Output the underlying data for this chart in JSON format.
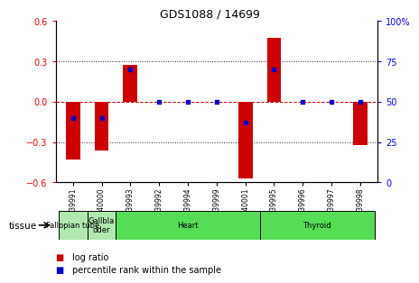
{
  "title": "GDS1088 / 14699",
  "samples": [
    "GSM39991",
    "GSM40000",
    "GSM39993",
    "GSM39992",
    "GSM39994",
    "GSM39999",
    "GSM40001",
    "GSM39995",
    "GSM39996",
    "GSM39997",
    "GSM39998"
  ],
  "log_ratios": [
    -0.43,
    -0.36,
    0.27,
    0.0,
    0.0,
    0.0,
    -0.57,
    0.47,
    0.0,
    0.0,
    -0.32
  ],
  "percentile_ranks": [
    40,
    40,
    70,
    50,
    50,
    50,
    37,
    70,
    50,
    50,
    50
  ],
  "tissue_boundaries": [
    {
      "label": "Fallopian tube",
      "start": 0,
      "end": 1,
      "color": "#b0e8b0"
    },
    {
      "label": "Gallbla\ndder",
      "start": 1,
      "end": 2,
      "color": "#b0e8b0"
    },
    {
      "label": "Heart",
      "start": 2,
      "end": 7,
      "color": "#55dd55"
    },
    {
      "label": "Thyroid",
      "start": 7,
      "end": 11,
      "color": "#55dd55"
    }
  ],
  "ylim_left": [
    -0.6,
    0.6
  ],
  "ylim_right": [
    0,
    100
  ],
  "yticks_left": [
    -0.6,
    -0.3,
    0.0,
    0.3,
    0.6
  ],
  "yticks_right": [
    0,
    25,
    50,
    75,
    100
  ],
  "bar_color": "#cc0000",
  "dot_color": "#0000cc",
  "zero_line_color": "#cc0000",
  "hgrid_color": "#222222",
  "bar_width": 0.5
}
